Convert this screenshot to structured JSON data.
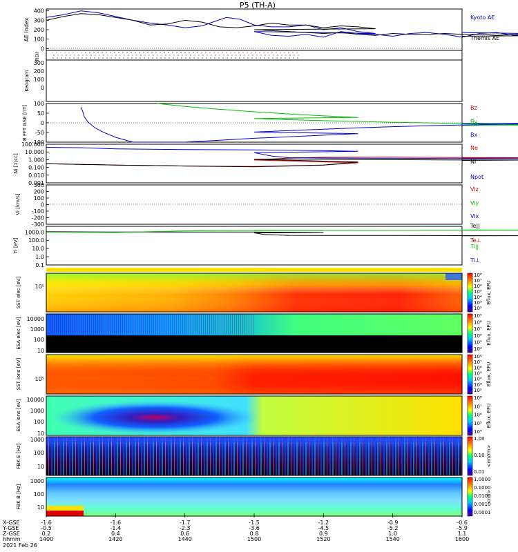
{
  "title": "P5 (TH-A)",
  "date_label": "2021 Feb 26",
  "chart_data": [
    {
      "type": "line",
      "panel": "AE",
      "ylabel": "AE Index",
      "ylim": [
        -20,
        420
      ],
      "yticks": [
        "400",
        "300",
        "200",
        "100",
        "0"
      ],
      "series": [
        {
          "name": "Kyoto AE",
          "color": "#0000c8",
          "x": [
            1400,
            1405,
            1410,
            1415,
            1420,
            1425,
            1430,
            1435,
            1440,
            1445,
            1448,
            1452,
            1456,
            1460,
            1465,
            1470,
            1475,
            1480,
            1485,
            1490,
            1495,
            1500,
            1505,
            1510,
            1515,
            1520,
            1525,
            1530,
            1535,
            1540,
            1545,
            1550,
            1555,
            1560,
            1565,
            1570,
            1575,
            1580,
            1585,
            1590,
            1595,
            1600
          ],
          "y": [
            330,
            360,
            400,
            380,
            340,
            300,
            270,
            250,
            220,
            240,
            280,
            330,
            310,
            250,
            230,
            230,
            250,
            200,
            220,
            180,
            160,
            180,
            140,
            130,
            150,
            120,
            180,
            160,
            150,
            130,
            160,
            170,
            150,
            120,
            160,
            170,
            140,
            150,
            130,
            100,
            150,
            170
          ]
        },
        {
          "name": "Themis AE",
          "color": "#000000",
          "x": [
            1400,
            1405,
            1410,
            1415,
            1420,
            1425,
            1430,
            1435,
            1440,
            1445,
            1450,
            1455,
            1460,
            1465,
            1470,
            1475,
            1480,
            1485,
            1490,
            1495,
            1500,
            1505,
            1510,
            1515,
            1520,
            1525,
            1530,
            1535,
            1540,
            1545,
            1550,
            1555,
            1560,
            1565,
            1570,
            1575,
            1580,
            1585,
            1590,
            1595,
            1600
          ],
          "y": [
            300,
            340,
            370,
            360,
            330,
            300,
            250,
            260,
            300,
            280,
            230,
            220,
            240,
            270,
            250,
            250,
            220,
            240,
            230,
            210,
            200,
            190,
            180,
            170,
            160,
            170,
            150,
            140,
            160,
            150,
            150,
            160,
            150,
            150,
            140,
            150,
            160,
            130,
            120,
            140,
            130
          ]
        }
      ]
    },
    {
      "type": "heatmap",
      "panel": "ROI",
      "ylabel": "ROI"
    },
    {
      "type": "heatmap",
      "panel": "Keogram",
      "ylabel": "Keogram",
      "yticks": [
        "300",
        "200",
        "100",
        "0"
      ]
    },
    {
      "type": "line",
      "panel": "B_FFT",
      "ylabel": "B FFT GSE [nT]",
      "ylim": [
        -100,
        100
      ],
      "yticks": [
        "100",
        "50",
        "0",
        "-50",
        "-100"
      ],
      "series": [
        {
          "name": "Bz",
          "color": "#d00000",
          "x": [],
          "y": []
        },
        {
          "name": "By",
          "color": "#00c000",
          "x": [
            1432,
            1440,
            1450,
            1460,
            1470,
            1480,
            1490,
            1500,
            1510,
            1520,
            1530,
            1540,
            1550,
            1560,
            1570,
            1580,
            1590,
            1600
          ],
          "y": [
            100,
            85,
            70,
            57,
            46,
            36,
            28,
            22,
            16,
            11,
            7,
            3,
            0,
            -4,
            -8,
            -10,
            -12,
            -14
          ]
        },
        {
          "name": "Bx",
          "color": "#0000c8",
          "x": [
            1410,
            1410.5,
            1411,
            1412,
            1414,
            1416,
            1418,
            1420,
            1425,
            1430,
            1440,
            1450,
            1460,
            1470,
            1480,
            1490,
            1500,
            1510,
            1520,
            1530,
            1540,
            1550,
            1560,
            1570,
            1580,
            1590,
            1600
          ],
          "y": [
            80,
            60,
            30,
            5,
            -25,
            -45,
            -60,
            -75,
            -100,
            -100,
            -100,
            -90,
            -80,
            -72,
            -64,
            -56,
            -48,
            -40,
            -33,
            -26,
            -20,
            -15,
            -11,
            -8,
            -5,
            -3,
            -2
          ]
        }
      ]
    },
    {
      "type": "line",
      "panel": "Ni",
      "ylabel": "Ni [1/cc]",
      "yscale": "log",
      "ylim": [
        0.001,
        100
      ],
      "yticks": [
        "100.000",
        "10.000",
        "1.000",
        "0.100",
        "0.010",
        "0.001"
      ],
      "series": [
        {
          "name": "Ne",
          "color": "#d00000",
          "x": [
            1400,
            1420,
            1440,
            1460,
            1470,
            1480,
            1490,
            1500,
            1510,
            1520,
            1540,
            1560,
            1580,
            1600
          ],
          "y": [
            0.3,
            0.2,
            0.15,
            0.13,
            0.16,
            0.2,
            0.4,
            0.9,
            1.6,
            2,
            2.1,
            1.9,
            1.8,
            1.6
          ]
        },
        {
          "name": "Ni",
          "color": "#000000",
          "x": [
            1400,
            1420,
            1440,
            1460,
            1470,
            1480,
            1490,
            1500,
            1510,
            1520,
            1540,
            1560,
            1580,
            1600
          ],
          "y": [
            0.3,
            0.2,
            0.15,
            0.12,
            0.15,
            0.2,
            0.5,
            1.1,
            1.2,
            1.1,
            1,
            0.9,
            0.9,
            0.8
          ]
        },
        {
          "name": "Npot",
          "color": "#0000c8",
          "x": [
            1400,
            1410,
            1420,
            1440,
            1460,
            1480,
            1490,
            1500,
            1505,
            1510,
            1520,
            1540,
            1560,
            1580,
            1600
          ],
          "y": [
            40,
            35,
            25,
            20,
            18,
            15,
            12,
            8,
            3,
            1.8,
            1.6,
            1.5,
            1.4,
            1.4,
            1.3
          ]
        }
      ]
    },
    {
      "type": "line",
      "panel": "Vi",
      "ylabel": "Vi [km/s]",
      "ylim": [
        -300,
        300
      ],
      "yticks": [
        "300",
        "200",
        "100",
        "0",
        "-100",
        "-200",
        "-300"
      ],
      "series": [
        {
          "name": "Viz",
          "color": "#d00000"
        },
        {
          "name": "Viy",
          "color": "#00c000"
        },
        {
          "name": "Vix",
          "color": "#0000c8"
        }
      ]
    },
    {
      "type": "line",
      "panel": "Ti",
      "ylabel": "Ti [eV]",
      "yscale": "log",
      "ylim": [
        0.1,
        5000
      ],
      "yticks": [
        "1000.0",
        "100.0",
        "10.0",
        "1.0",
        "0.1"
      ],
      "series": [
        {
          "name": "Te||",
          "color": "#000000",
          "x": [
            1400,
            1420,
            1440,
            1460,
            1480,
            1500,
            1503,
            1510,
            1520,
            1540,
            1560,
            1580,
            1600
          ],
          "y": [
            1100,
            1000,
            1000,
            1000,
            900,
            800,
            500,
            400,
            380,
            380,
            370,
            360,
            350
          ]
        },
        {
          "name": "Te⊥",
          "color": "#d00000"
        },
        {
          "name": "Ti||",
          "color": "#00c000",
          "x": [
            1400,
            1420,
            1440,
            1460,
            1480,
            1500,
            1520,
            1540,
            1560,
            1580,
            1600
          ],
          "y": [
            1000,
            900,
            1400,
            1600,
            1700,
            1700,
            1600,
            1650,
            1700,
            1750,
            1800
          ]
        },
        {
          "name": "Ti⊥",
          "color": "#0000c8"
        }
      ]
    },
    {
      "type": "heatmap",
      "panel": "SST_e",
      "ylabel": "SST elec [eV]",
      "yticks": [
        "10⁵"
      ],
      "colorbar_label": "Eflux, EFU",
      "colorbar_ticks": [
        "10⁸",
        "10⁷",
        "10⁶",
        "10⁵",
        "10⁴",
        "10³",
        "10²"
      ]
    },
    {
      "type": "heatmap",
      "panel": "ESA_e",
      "ylabel": "ESA elec [eV]",
      "yticks": [
        "10000",
        "1000",
        "100",
        "10"
      ],
      "colorbar_label": "Eflux, EFU",
      "colorbar_ticks": [
        "10⁹",
        "10⁸",
        "10⁷",
        "10⁶",
        "10⁵",
        "10⁴"
      ]
    },
    {
      "type": "heatmap",
      "panel": "SST_i",
      "ylabel": "SST ions [eV]",
      "yticks": [
        "10⁵"
      ],
      "colorbar_label": "Eflux, EFU",
      "colorbar_ticks": [
        "10⁸",
        "10⁷",
        "10⁶",
        "10⁵",
        "10⁴",
        "10³",
        "10²"
      ]
    },
    {
      "type": "heatmap",
      "panel": "ESA_i",
      "ylabel": "ESA ions [eV]",
      "yticks": [
        "10000",
        "1000",
        "100",
        "10"
      ],
      "colorbar_label": "Eflux, EFU",
      "colorbar_ticks": [
        "10⁸",
        "10⁷",
        "10⁶",
        "10⁵",
        "10⁴"
      ]
    },
    {
      "type": "heatmap",
      "panel": "FBK_E",
      "ylabel": "FBK E [Hz]",
      "yticks": [
        "1000",
        "100",
        "10"
      ],
      "colorbar_label": "<mV/m>",
      "colorbar_ticks": [
        "1.00",
        "0.10",
        "0.01"
      ]
    },
    {
      "type": "heatmap",
      "panel": "FBK_B",
      "ylabel": "FBK B [Hz]",
      "yticks": [
        "1000",
        "100",
        "10"
      ],
      "colorbar_label": "<nT>",
      "colorbar_ticks": [
        "1.0000",
        "0.1000",
        "0.0100",
        "0.0010",
        "0.0001"
      ]
    }
  ],
  "xaxis": {
    "row_labels": [
      "X-GSE",
      "Y-GSE",
      "Z-GSE",
      "hhmm"
    ],
    "ticks": [
      {
        "x": "-1.6",
        "y": "-0.5",
        "z": "0.2",
        "t": "1400"
      },
      {
        "x": "-1.6",
        "y": "-1.4",
        "z": "0.4",
        "t": "1420"
      },
      {
        "x": "-1.7",
        "y": "-2.3",
        "z": "0.6",
        "t": "1440"
      },
      {
        "x": "-1.5",
        "y": "-3.6",
        "z": "0.8",
        "t": "1500"
      },
      {
        "x": "-1.2",
        "y": "-4.5",
        "z": "0.9",
        "t": "1520"
      },
      {
        "x": "-0.9",
        "y": "-5.2",
        "z": "1.0",
        "t": "1540"
      },
      {
        "x": "-0.6",
        "y": "-5.9",
        "z": "1.1",
        "t": "1600"
      }
    ]
  }
}
